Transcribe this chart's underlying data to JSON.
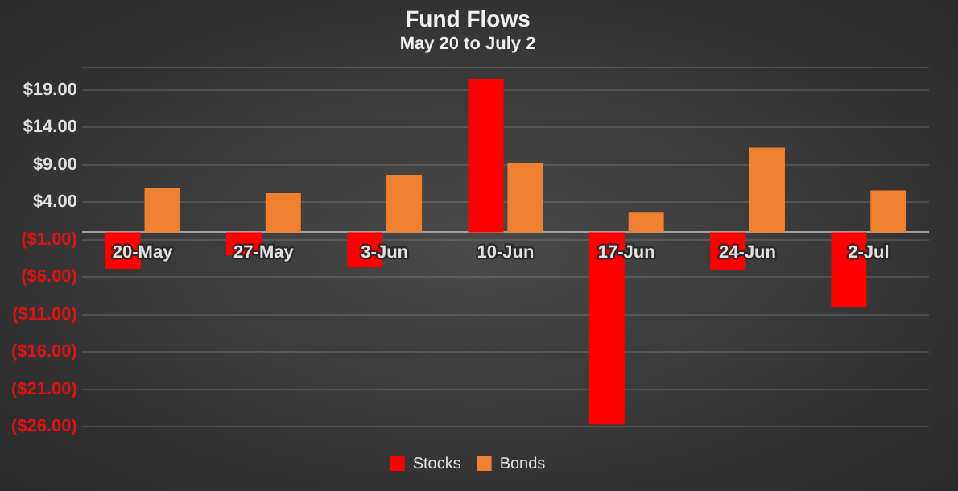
{
  "chart_data": {
    "type": "bar",
    "title": "Fund Flows",
    "subtitle": "May 20 to July 2",
    "categories": [
      "20-May",
      "27-May",
      "3-Jun",
      "10-Jun",
      "17-Jun",
      "24-Jun",
      "2-Jul"
    ],
    "series": [
      {
        "name": "Stocks",
        "color": "#ff0000",
        "values": [
          -4.9,
          -3.1,
          -4.7,
          20.5,
          -25.7,
          -5.1,
          -10.0
        ]
      },
      {
        "name": "Bonds",
        "color": "#ee8030",
        "values": [
          5.9,
          5.2,
          7.6,
          9.3,
          2.6,
          11.3,
          5.6
        ]
      }
    ],
    "ylim": [
      -26,
      22
    ],
    "yticks": [
      {
        "value": -26,
        "label": "($26.00)"
      },
      {
        "value": -21,
        "label": "($21.00)"
      },
      {
        "value": -16,
        "label": "($16.00)"
      },
      {
        "value": -11,
        "label": "($11.00)"
      },
      {
        "value": -6,
        "label": "($6.00)"
      },
      {
        "value": -1,
        "label": "($1.00)"
      },
      {
        "value": 4,
        "label": "$4.00"
      },
      {
        "value": 9,
        "label": "$9.00"
      },
      {
        "value": 14,
        "label": "$14.00"
      },
      {
        "value": 19,
        "label": "$19.00"
      }
    ],
    "grid": "y",
    "legend": "bottom"
  }
}
